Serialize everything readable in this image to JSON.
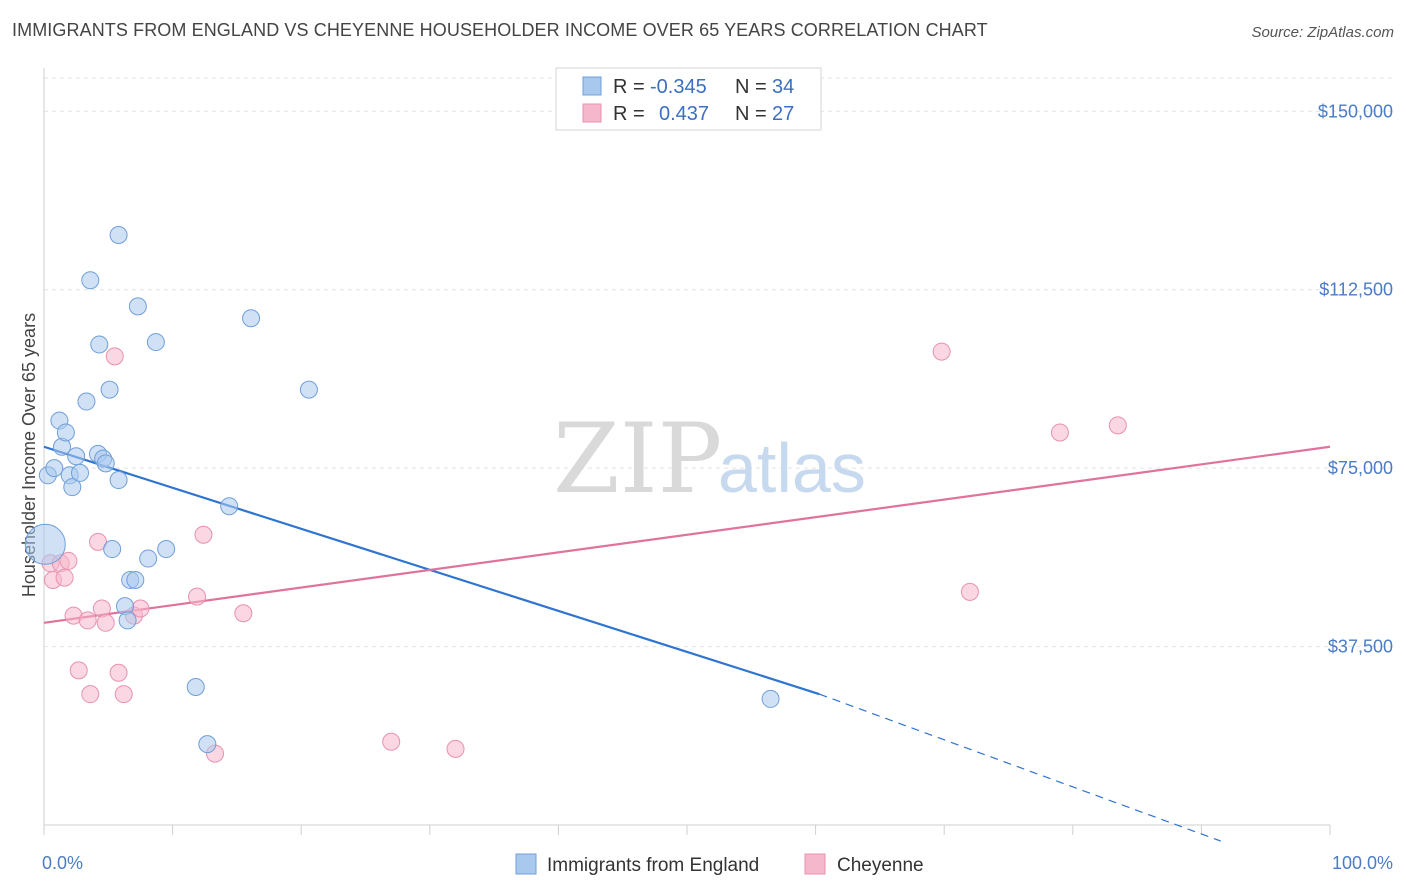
{
  "title": "IMMIGRANTS FROM ENGLAND VS CHEYENNE HOUSEHOLDER INCOME OVER 65 YEARS CORRELATION CHART",
  "source": "Source: ZipAtlas.com",
  "watermark": {
    "zip": "ZIP",
    "atlas": "atlas"
  },
  "colors": {
    "blue_fill": "#a9c8ee",
    "blue_stroke": "#6f9fd9",
    "blue_line": "#2f74d0",
    "pink_fill": "#f5b7cb",
    "pink_stroke": "#e892af",
    "pink_line": "#e0739b",
    "grid": "#e2e2e2",
    "axis_text": "#4a7cc7"
  },
  "legend": {
    "rows": [
      {
        "r_label": "R =",
        "r_value": "-0.345",
        "n_label": "N =",
        "n_value": "34"
      },
      {
        "r_label": "R =",
        "r_value": "0.437",
        "n_label": "N =",
        "n_value": "27"
      }
    ]
  },
  "chart_data": {
    "type": "scatter",
    "title": "IMMIGRANTS FROM ENGLAND VS CHEYENNE HOUSEHOLDER INCOME OVER 65 YEARS CORRELATION CHART",
    "xlabel": "",
    "ylabel": "Householder Income Over 65 years",
    "xlim": [
      0,
      100
    ],
    "ylim": [
      0,
      157000
    ],
    "x_tick_labels": [
      "0.0%",
      "100.0%"
    ],
    "y_ticks": [
      37500,
      75000,
      112500,
      150000
    ],
    "y_tick_labels": [
      "$37,500",
      "$75,000",
      "$112,500",
      "$150,000"
    ],
    "series": [
      {
        "name": "Immigrants from England",
        "color": "blue",
        "points": [
          [
            0.1,
            59000
          ],
          [
            0.3,
            73500
          ],
          [
            0.8,
            75000
          ],
          [
            1.2,
            85000
          ],
          [
            1.4,
            79500
          ],
          [
            1.7,
            82500
          ],
          [
            2.0,
            73500
          ],
          [
            2.2,
            71000
          ],
          [
            2.5,
            77500
          ],
          [
            2.8,
            74000
          ],
          [
            3.3,
            89000
          ],
          [
            3.6,
            114500
          ],
          [
            4.2,
            78000
          ],
          [
            4.3,
            101000
          ],
          [
            4.6,
            77000
          ],
          [
            4.8,
            76000
          ],
          [
            5.1,
            91500
          ],
          [
            5.3,
            58000
          ],
          [
            5.8,
            72500
          ],
          [
            5.8,
            124000
          ],
          [
            6.3,
            46000
          ],
          [
            6.5,
            43000
          ],
          [
            6.7,
            51500
          ],
          [
            7.1,
            51500
          ],
          [
            7.3,
            109000
          ],
          [
            8.1,
            56000
          ],
          [
            8.7,
            101500
          ],
          [
            9.5,
            58000
          ],
          [
            11.8,
            29000
          ],
          [
            12.7,
            17000
          ],
          [
            14.4,
            67000
          ],
          [
            16.1,
            106500
          ],
          [
            20.6,
            91500
          ],
          [
            56.5,
            26500
          ]
        ]
      },
      {
        "name": "Cheyenne",
        "color": "pink",
        "points": [
          [
            0.5,
            55000
          ],
          [
            0.7,
            51500
          ],
          [
            1.3,
            55000
          ],
          [
            1.6,
            52000
          ],
          [
            1.9,
            55500
          ],
          [
            2.3,
            44000
          ],
          [
            2.7,
            32500
          ],
          [
            3.4,
            43000
          ],
          [
            3.6,
            27500
          ],
          [
            4.2,
            59500
          ],
          [
            4.5,
            45500
          ],
          [
            4.8,
            42500
          ],
          [
            5.5,
            98500
          ],
          [
            5.8,
            32000
          ],
          [
            6.2,
            27500
          ],
          [
            7.0,
            44000
          ],
          [
            7.5,
            45500
          ],
          [
            11.9,
            48000
          ],
          [
            12.4,
            61000
          ],
          [
            13.3,
            15000
          ],
          [
            15.5,
            44500
          ],
          [
            27.0,
            17500
          ],
          [
            32.0,
            16000
          ],
          [
            69.8,
            99500
          ],
          [
            72.0,
            49000
          ],
          [
            79.0,
            82500
          ],
          [
            83.5,
            84000
          ]
        ]
      }
    ],
    "trend_lines": [
      {
        "series": "Immigrants from England",
        "x_start": 0,
        "y_start": 79500,
        "x_solid_end": 60.3,
        "y_solid_end": 27500,
        "x_dash_end": 91.5,
        "y_dash_end": 0
      },
      {
        "series": "Cheyenne",
        "x_start": 0,
        "y_start": 42500,
        "x_end": 100,
        "y_end": 79500
      }
    ],
    "bubble_note": "one large blue point at x 0.1"
  },
  "bottom_legend": [
    {
      "label": "Immigrants from England",
      "color": "blue"
    },
    {
      "label": "Cheyenne",
      "color": "pink"
    }
  ]
}
